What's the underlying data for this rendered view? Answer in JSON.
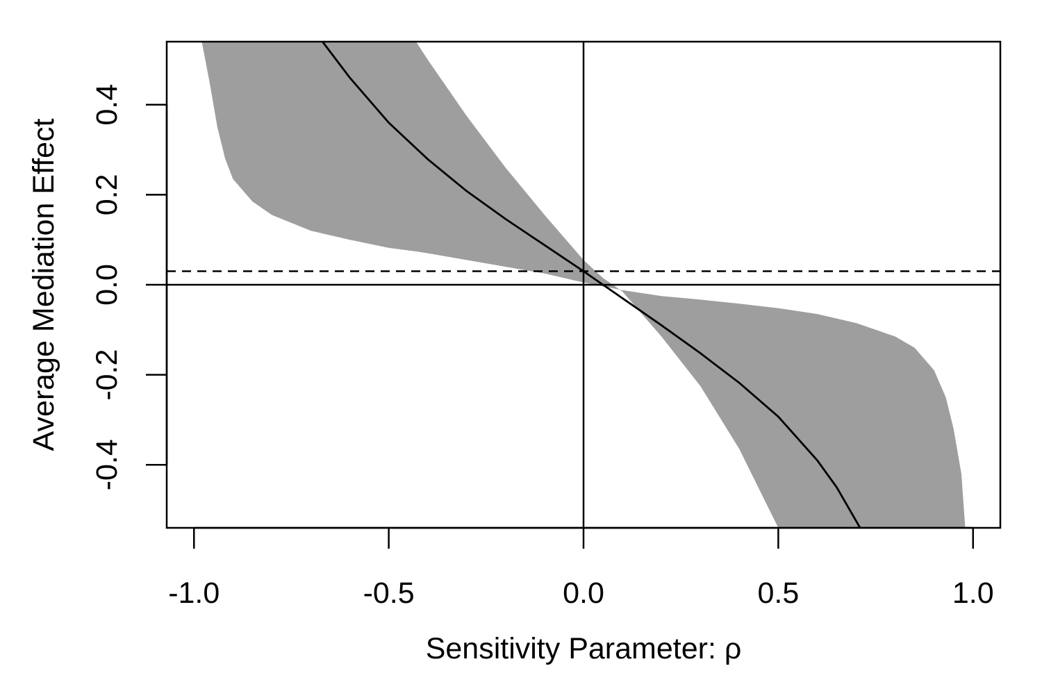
{
  "chart_data": {
    "type": "line",
    "title": "",
    "xlabel": "Sensitivity Parameter: ρ",
    "ylabel": "Average Mediation Effect",
    "xlim": [
      -1.07,
      1.07
    ],
    "ylim": [
      -0.54,
      0.54
    ],
    "xticks": [
      -1.0,
      -0.5,
      0.0,
      0.5,
      1.0
    ],
    "xtick_labels": [
      "-1.0",
      "-0.5",
      "0.0",
      "0.5",
      "1.0"
    ],
    "yticks": [
      -0.4,
      -0.2,
      0.0,
      0.2,
      0.4
    ],
    "ytick_labels": [
      "-0.4",
      "-0.2",
      "0.0",
      "0.2",
      "0.4"
    ],
    "grid": false,
    "legend": "none",
    "reference_lines": {
      "horizontal_solid_y": 0.0,
      "vertical_solid_x": 0.0,
      "horizontal_dashed_y": 0.03
    },
    "band_color": "#9e9e9e",
    "line_color": "#000000",
    "series": [
      {
        "role": "estimate",
        "x": [
          -0.67,
          -0.6,
          -0.5,
          -0.4,
          -0.3,
          -0.2,
          -0.1,
          0.0,
          0.05,
          0.1,
          0.2,
          0.3,
          0.4,
          0.5,
          0.6,
          0.65,
          0.71
        ],
        "y": [
          0.54,
          0.46,
          0.36,
          0.279,
          0.208,
          0.146,
          0.088,
          0.03,
          0.0,
          -0.03,
          -0.09,
          -0.152,
          -0.218,
          -0.293,
          -0.39,
          -0.45,
          -0.54
        ]
      },
      {
        "role": "ci_upper",
        "x": [
          -0.98,
          -0.96,
          -0.94,
          -0.92,
          -0.9,
          -0.85,
          -0.8,
          -0.7,
          -0.6,
          -0.5,
          -0.43,
          -0.4,
          -0.3,
          -0.2,
          -0.1,
          0.0,
          0.1,
          0.2,
          0.3,
          0.4,
          0.5,
          0.6,
          0.7,
          0.8,
          0.85,
          0.9,
          0.93,
          0.95,
          0.97,
          0.98
        ],
        "y": [
          0.54,
          0.45,
          0.35,
          0.28,
          0.235,
          0.185,
          0.155,
          0.12,
          0.1,
          0.082,
          0.074,
          0.07,
          0.055,
          0.04,
          0.025,
          0.005,
          -0.012,
          -0.025,
          -0.033,
          -0.042,
          -0.052,
          -0.065,
          -0.085,
          -0.115,
          -0.14,
          -0.19,
          -0.25,
          -0.32,
          -0.42,
          -0.54
        ]
      },
      {
        "role": "ci_lower",
        "x": [
          -0.43,
          -0.4,
          -0.3,
          -0.2,
          -0.1,
          0.0,
          0.05,
          0.1,
          0.2,
          0.3,
          0.4,
          0.5
        ],
        "y": [
          0.54,
          0.5,
          0.375,
          0.26,
          0.155,
          0.055,
          0.015,
          -0.015,
          -0.115,
          -0.225,
          -0.365,
          -0.54
        ]
      }
    ]
  }
}
